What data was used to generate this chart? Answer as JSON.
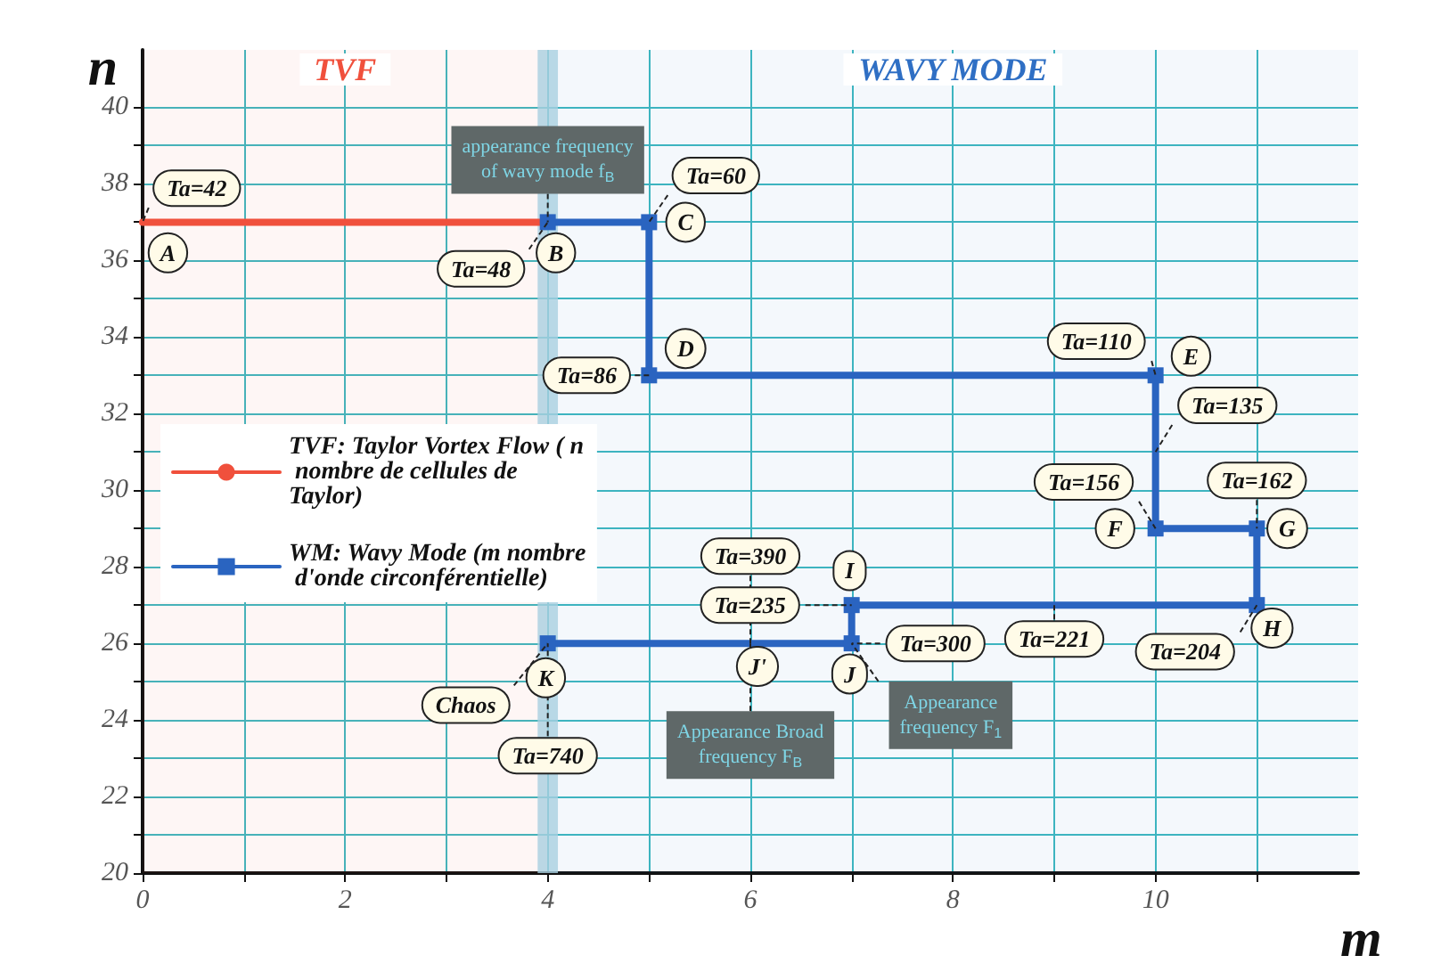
{
  "chart_data": {
    "type": "line",
    "xlabel": "m",
    "ylabel": "n",
    "xlim": [
      0,
      12
    ],
    "ylim": [
      20,
      41.5
    ],
    "xticks": [
      0,
      {
        "value": 1,
        "label": null
      },
      2,
      {
        "value": 3,
        "label": null
      },
      4,
      {
        "value": 5,
        "label": null
      },
      6,
      {
        "value": 7,
        "label": null
      },
      8,
      {
        "value": 9,
        "label": null
      },
      10,
      {
        "value": 11,
        "label": null
      }
    ],
    "yticks": [
      20,
      {
        "value": 21,
        "label": null
      },
      22,
      {
        "value": 23,
        "label": null
      },
      24,
      {
        "value": 25,
        "label": null
      },
      26,
      {
        "value": 27,
        "label": null
      },
      28,
      {
        "value": 29,
        "label": null
      },
      30,
      {
        "value": 31,
        "label": null
      },
      32,
      {
        "value": 33,
        "label": null
      },
      34,
      {
        "value": 35,
        "label": null
      },
      36,
      {
        "value": 37,
        "label": null
      },
      38,
      {
        "value": 39,
        "label": null
      },
      40
    ],
    "grid": true,
    "legend": "left",
    "marker": "square",
    "series": [
      {
        "name": "TVF: Taylor Vortex Flow ( n nombre de cellules de Taylor)",
        "color": "#f0503c",
        "marker": "none",
        "x": [
          0,
          4
        ],
        "values": [
          37,
          37
        ]
      },
      {
        "name": "WM: Wavy Mode (m nombre d'onde circonférentielle)",
        "color": "#2a64c0",
        "x": [
          4,
          5,
          5,
          10,
          10,
          11,
          11,
          7,
          7,
          4
        ],
        "values": [
          37,
          37,
          33,
          33,
          29,
          29,
          27,
          27,
          26,
          26
        ]
      }
    ],
    "bands": [
      {
        "axis": "x",
        "from": 0,
        "to": 4,
        "label": "TVF",
        "color": "#f0503c"
      },
      {
        "axis": "x",
        "from": 4,
        "to": 12,
        "label": "WAVY MODE",
        "color": "#2f6fc4"
      },
      {
        "axis": "x",
        "from": 3.9,
        "to": 4.1,
        "color": "#a9cfe0"
      }
    ],
    "annotations": [
      {
        "text": "A",
        "x": 0.25,
        "y": 36.2
      },
      {
        "text": "B",
        "x": 4.08,
        "y": 36.2
      },
      {
        "text": "C",
        "x": 5.36,
        "y": 37
      },
      {
        "text": "D",
        "x": 5.36,
        "y": 33.7
      },
      {
        "text": "E",
        "x": 10.35,
        "y": 33.5
      },
      {
        "text": "F",
        "x": 9.6,
        "y": 29
      },
      {
        "text": "G",
        "x": 11.3,
        "y": 29
      },
      {
        "text": "H",
        "x": 11.15,
        "y": 26.4
      },
      {
        "text": "I",
        "x": 6.98,
        "y": 27.9
      },
      {
        "text": "J",
        "x": 6.98,
        "y": 25.2
      },
      {
        "text": "J'",
        "x": 6.07,
        "y": 25.4
      },
      {
        "text": "K",
        "x": 3.98,
        "y": 25.1
      },
      {
        "text": "appearance frequency of wavy mode f$_{B}$",
        "x": 4,
        "y": 37
      },
      {
        "text": "Chaos",
        "x": 4,
        "y": 26
      },
      {
        "text": "Appearance frequency F$_{1}$",
        "x": 7,
        "y": 26
      },
      {
        "text": "Appearance Broad frequency F$_{B}$",
        "x": 6,
        "y": 26
      },
      {
        "text": "Ta=42",
        "x": 0,
        "y": 37
      },
      {
        "text": "Ta=48",
        "x": 4,
        "y": 37
      },
      {
        "text": "Ta=60",
        "x": 5,
        "y": 37
      },
      {
        "text": "Ta=86",
        "x": 5,
        "y": 33
      },
      {
        "text": "Ta=110",
        "x": 10,
        "y": 33
      },
      {
        "text": "Ta=162",
        "x": 11,
        "y": 29
      },
      {
        "text": "Ta=156",
        "x": 10,
        "y": 29
      },
      {
        "text": "Ta=135",
        "x": 10,
        "y": 31
      },
      {
        "text": "Ta=235",
        "x": 7,
        "y": 27
      },
      {
        "text": "Ta=221",
        "x": 9,
        "y": 27
      },
      {
        "text": "Ta=204",
        "x": 11,
        "y": 27
      },
      {
        "text": "Ta=300",
        "x": 7,
        "y": 26
      },
      {
        "text": "Ta=390",
        "x": 6,
        "y": 26
      },
      {
        "text": "Ta=740",
        "x": 4,
        "y": 26
      }
    ]
  }
}
